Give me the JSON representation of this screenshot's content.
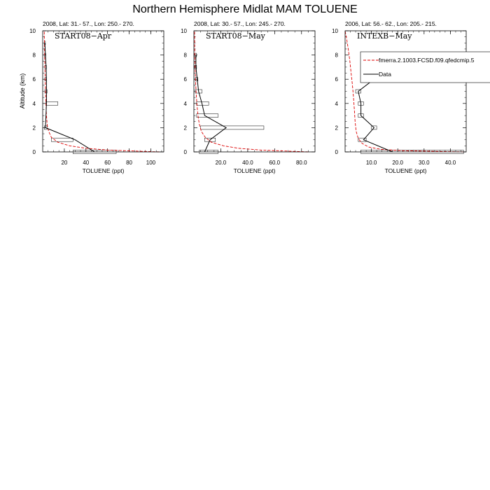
{
  "title": "Northern Hemisphere Midlat MAM TOLUENE",
  "ylabel": "Altitude (km)",
  "colors": {
    "model": "#dd0000",
    "data": "#000000"
  },
  "legend": {
    "model_label": "fmerra.2.1003.FCSD.f09.qfedcmip.5",
    "data_label": "Data"
  },
  "chart_data": [
    {
      "type": "line",
      "subtitle": "2008, Lat:  31.- 57., Lon: 250.- 270.",
      "panel_label": "START08−Apr",
      "xlabel": "TOLUENE (ppt)",
      "ylabel": "Altitude (km)",
      "xlim": [
        0,
        112
      ],
      "ylim": [
        0,
        10
      ],
      "xticks": [
        20,
        40,
        60,
        80,
        100
      ],
      "xtick_labels": [
        "20",
        "40",
        "60",
        "80",
        "100"
      ],
      "yticks": [
        0,
        2,
        4,
        6,
        8,
        10
      ],
      "ytick_labels": [
        "0",
        "2",
        "4",
        "6",
        "8",
        "10"
      ],
      "model": {
        "x": [
          108,
          60,
          40,
          25,
          14,
          8,
          5.5,
          4.2,
          3.5,
          3,
          2.6,
          2.3,
          2,
          1.8,
          1.6,
          1.4,
          1.2
        ],
        "y": [
          0,
          0.15,
          0.3,
          0.5,
          0.8,
          1.2,
          1.7,
          2.2,
          3,
          4,
          5,
          6,
          7,
          8,
          9,
          10,
          10
        ]
      },
      "data": {
        "x": [
          48,
          30,
          2.5,
          3.5,
          3.5,
          3.5,
          3.2,
          2.5,
          2
        ],
        "y": [
          0,
          1,
          2,
          4,
          5,
          6,
          7,
          8,
          9
        ],
        "box_left": [
          28,
          8,
          1.5,
          3,
          2,
          2,
          2,
          1.8,
          1.5
        ],
        "box_right": [
          68,
          28,
          4,
          14,
          4,
          3.5,
          3.5,
          2.8,
          2.5
        ]
      }
    },
    {
      "type": "line",
      "subtitle": "2008, Lat:  30.- 57., Lon: 245.- 270.",
      "panel_label": "START08−May",
      "xlabel": "TOLUENE (ppt)",
      "ylabel": "",
      "xlim": [
        0,
        90
      ],
      "ylim": [
        0,
        10
      ],
      "xticks": [
        20,
        40,
        60,
        80
      ],
      "xtick_labels": [
        "20.0",
        "40.0",
        "60.0",
        "80.0"
      ],
      "yticks": [
        0,
        2,
        4,
        6,
        8,
        10
      ],
      "ytick_labels": [
        "0",
        "2",
        "4",
        "6",
        "8",
        "10"
      ],
      "model": {
        "x": [
          85,
          50,
          33,
          22,
          13,
          8.5,
          5.5,
          4,
          3,
          2.2,
          1.6,
          1.2,
          0.9,
          0.7,
          0.5
        ],
        "y": [
          0,
          0.15,
          0.3,
          0.5,
          0.8,
          1.2,
          1.7,
          2.3,
          3,
          4,
          5,
          6,
          7,
          8,
          10
        ]
      },
      "data": {
        "x": [
          8,
          12,
          24,
          8,
          6,
          3.5,
          2.5,
          1.5,
          1.5
        ],
        "y": [
          0,
          1,
          2,
          3,
          4,
          5,
          6,
          7,
          8
        ],
        "box_left": [
          4,
          8,
          5,
          2,
          2,
          1,
          1,
          0.5,
          0.5
        ],
        "box_right": [
          18,
          16,
          52,
          18,
          11,
          6,
          3,
          2,
          2
        ]
      }
    },
    {
      "type": "line",
      "subtitle": "2006, Lat:  56.- 62., Lon: 205.- 215.",
      "panel_label": "INTEXB−May",
      "xlabel": "TOLUENE (ppt)",
      "ylabel": "",
      "xlim": [
        0,
        46
      ],
      "ylim": [
        0,
        10
      ],
      "xticks": [
        10,
        20,
        30,
        40
      ],
      "xtick_labels": [
        "10.0",
        "20.0",
        "30.0",
        "40.0"
      ],
      "yticks": [
        0,
        2,
        4,
        6,
        8,
        10
      ],
      "ytick_labels": [
        "0",
        "2",
        "4",
        "6",
        "8",
        "10"
      ],
      "model": {
        "x": [
          45,
          22,
          14,
          9,
          6.5,
          5,
          4.2,
          3.8,
          3.5,
          3.2,
          2.8,
          2.3,
          1.8,
          1.2,
          0.6,
          0
        ],
        "y": [
          0,
          0.1,
          0.2,
          0.4,
          0.7,
          1.1,
          1.7,
          2.5,
          3.5,
          4.5,
          5.5,
          6.5,
          7.5,
          8.5,
          9.3,
          10
        ]
      },
      "data": {
        "x": [
          18,
          7,
          11,
          6,
          6,
          5,
          11,
          7
        ],
        "y": [
          0,
          1,
          2,
          3,
          4,
          5,
          6,
          7
        ],
        "box_left": [
          6,
          5,
          10,
          5,
          5,
          4,
          10,
          6
        ],
        "box_right": [
          45,
          8,
          12,
          7,
          7,
          6,
          12,
          8
        ]
      }
    }
  ]
}
